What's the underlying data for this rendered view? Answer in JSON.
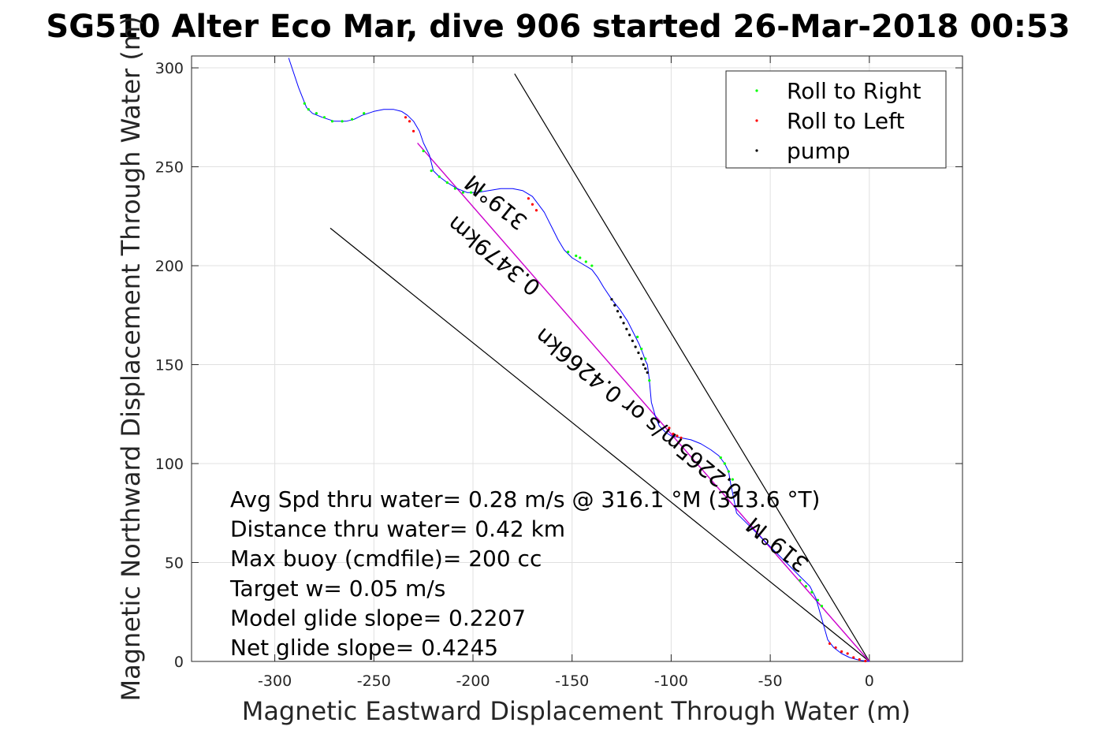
{
  "chart_data": {
    "type": "line",
    "title": "SG510 Alter Eco Mar, dive 906 started 26-Mar-2018 00:53",
    "xlabel": "Magnetic Eastward Displacement Through Water (m)",
    "ylabel": "Magnetic Northward Displacement Through Water (m)",
    "xlim": [
      -342,
      47
    ],
    "ylim": [
      0,
      306
    ],
    "xticks": [
      -300,
      -250,
      -200,
      -150,
      -100,
      -50,
      0
    ],
    "yticks": [
      0,
      50,
      100,
      150,
      200,
      250,
      300
    ],
    "grid": true,
    "legend": {
      "placement": "top-right",
      "entries": [
        {
          "label": "Roll to Right",
          "color": "#00ff00"
        },
        {
          "label": "Roll to Left",
          "color": "#ff0000"
        },
        {
          "label": "pump",
          "color": "#000000"
        }
      ]
    },
    "track": {
      "name": "track",
      "color": "#0000ff",
      "x": [
        -293,
        -288,
        -284,
        -281,
        -276,
        -270,
        -264,
        -260,
        -256,
        -250,
        -245,
        -240,
        -236,
        -233,
        -230,
        -227,
        -225,
        -222,
        -220,
        -217,
        -213,
        -208,
        -203,
        -198,
        -192,
        -186,
        -180,
        -175,
        -170,
        -167,
        -164,
        -162,
        -160,
        -157,
        -154,
        -150,
        -145,
        -140,
        -137,
        -134,
        -130,
        -126,
        -122,
        -119,
        -116,
        -114,
        -113,
        -112,
        -111,
        -110,
        -108,
        -106,
        -103,
        -100,
        -95,
        -90,
        -85,
        -80,
        -76,
        -73,
        -71,
        -70,
        -69,
        -68,
        -67,
        -64,
        -60,
        -55,
        -50,
        -45,
        -40,
        -35,
        -30,
        -27,
        -25,
        -23,
        -21,
        -18,
        -14,
        -10,
        -5,
        0
      ],
      "y": [
        305,
        290,
        280,
        277,
        275,
        273,
        273,
        274,
        276,
        278,
        279,
        279,
        278,
        276,
        273,
        268,
        262,
        256,
        248,
        245,
        242,
        239,
        237,
        237,
        238,
        239,
        239,
        238,
        235,
        231,
        227,
        223,
        219,
        213,
        208,
        204,
        201,
        198,
        194,
        189,
        183,
        178,
        172,
        166,
        160,
        155,
        152,
        150,
        142,
        131,
        124,
        119,
        116,
        114,
        113,
        112,
        110,
        107,
        104,
        100,
        96,
        90,
        85,
        80,
        75,
        72,
        68,
        63,
        58,
        53,
        48,
        43,
        38,
        32,
        25,
        18,
        11,
        7,
        4,
        2,
        0.6,
        0
      ],
      "roll_right_x": [
        -285,
        -283,
        -279,
        -275,
        -271,
        -266,
        -261,
        -255,
        -225,
        -221,
        -217,
        -213,
        -209,
        -205,
        -201,
        -196,
        -152,
        -148,
        -146,
        -143,
        -140,
        -117,
        -115,
        -113,
        -111,
        -75,
        -73,
        -71,
        -69,
        -35,
        -32,
        -29,
        -26,
        -24
      ],
      "roll_right_y": [
        282,
        279,
        277,
        275,
        273,
        273,
        274,
        277,
        258,
        248,
        245,
        242,
        239,
        237,
        237,
        238,
        207,
        205,
        204,
        202,
        200,
        164,
        158,
        153,
        142,
        103,
        100,
        96,
        92,
        41,
        38,
        35,
        31,
        28
      ],
      "roll_left_x": [
        -234,
        -232,
        -230,
        -172,
        -170,
        -168,
        -101,
        -99,
        -97,
        -95,
        -20,
        -17,
        -14,
        -11,
        -8,
        -5,
        -2
      ],
      "roll_left_y": [
        275,
        273,
        268,
        234,
        231,
        228,
        118,
        115,
        114,
        113,
        9,
        7,
        5,
        4,
        2,
        1,
        0.2
      ],
      "pump_x": [
        -130,
        -128.5,
        -127,
        -125.5,
        -124,
        -122.5,
        -121,
        -119.5,
        -118,
        -116.5,
        -115,
        -114,
        -113,
        -112
      ],
      "pump_y": [
        183,
        180,
        177,
        174,
        171,
        168,
        165,
        162,
        159,
        156,
        153,
        150,
        148,
        146
      ]
    },
    "net_line": {
      "color": "#cc00cc",
      "x": [
        -228,
        0
      ],
      "y": [
        262,
        0
      ]
    },
    "bounds": [
      {
        "color": "#000000",
        "x": [
          -179,
          0
        ],
        "y": [
          297,
          0
        ]
      },
      {
        "color": "#000000",
        "x": [
          -272,
          0
        ],
        "y": [
          219,
          0
        ]
      }
    ],
    "annotations": [
      "Avg Spd thru water=  0.28 m/s @ 316.1 °M (313.6 °T)",
      "Distance thru water=  0.42 km",
      "Max buoy (cmdfile)= 200 cc",
      "Target w= 0.05 m/s",
      "Model glide slope= 0.2207",
      "Net glide slope= 0.4245"
    ],
    "rotated_labels": [
      {
        "text": "319°M",
        "x": -186,
        "y": 235,
        "angle": 219
      },
      {
        "text": "0.3479km",
        "x": -187,
        "y": 208,
        "angle": 219
      },
      {
        "text": "0.2265m/s or 0.4266kn",
        "x": -114,
        "y": 128,
        "angle": 219
      },
      {
        "text": "319°M",
        "x": -44,
        "y": 62,
        "angle": 219
      }
    ]
  }
}
